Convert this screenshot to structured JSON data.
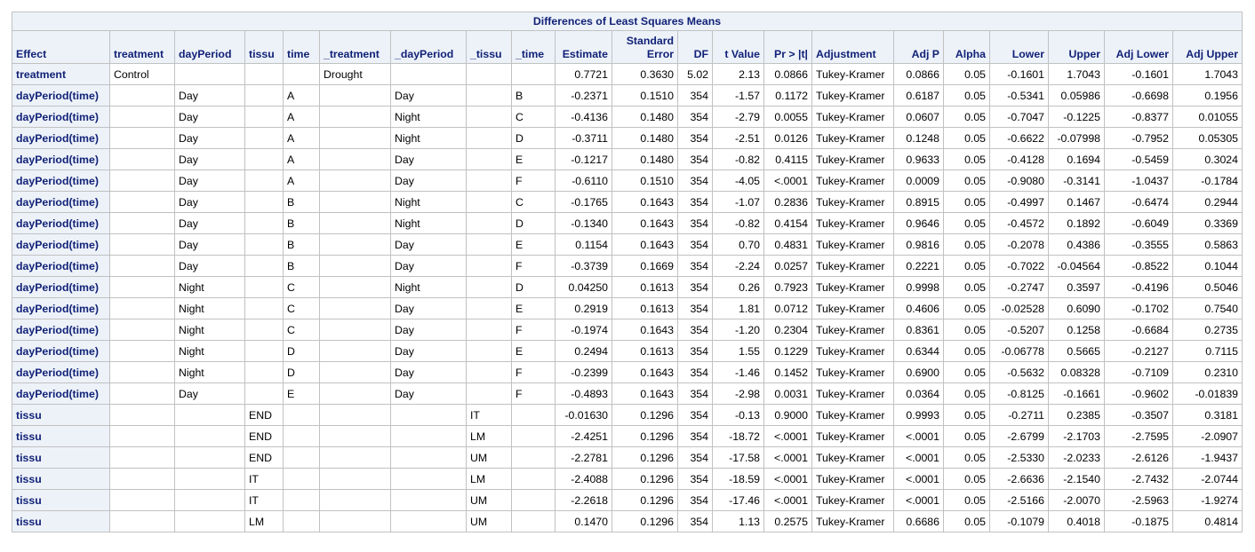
{
  "title": "Differences of Least Squares Means",
  "columns": [
    {
      "key": "effect",
      "label": "Effect",
      "align": "l",
      "width": 110
    },
    {
      "key": "treatment",
      "label": "treatment",
      "align": "l",
      "width": 73
    },
    {
      "key": "dayPeriod",
      "label": "dayPeriod",
      "align": "l",
      "width": 79
    },
    {
      "key": "tissu",
      "label": "tissu",
      "align": "l",
      "width": 43
    },
    {
      "key": "time",
      "label": "time",
      "align": "l",
      "width": 41
    },
    {
      "key": "_treatment",
      "label": "_treatment",
      "align": "l",
      "width": 80
    },
    {
      "key": "_dayPeriod",
      "label": "_dayPeriod",
      "align": "l",
      "width": 85
    },
    {
      "key": "_tissu",
      "label": "_tissu",
      "align": "l",
      "width": 51
    },
    {
      "key": "_time",
      "label": "_time",
      "align": "l",
      "width": 49
    },
    {
      "key": "estimate",
      "label": "Estimate",
      "align": "r",
      "width": 64
    },
    {
      "key": "std_error",
      "label": "Standard Error",
      "align": "r",
      "width": 74
    },
    {
      "key": "df",
      "label": "DF",
      "align": "r",
      "width": 39
    },
    {
      "key": "t_value",
      "label": "t Value",
      "align": "r",
      "width": 58
    },
    {
      "key": "pr_t",
      "label": "Pr > |t|",
      "align": "r",
      "width": 54
    },
    {
      "key": "adjustment",
      "label": "Adjustment",
      "align": "l",
      "width": 92
    },
    {
      "key": "adj_p",
      "label": "Adj P",
      "align": "r",
      "width": 56
    },
    {
      "key": "alpha",
      "label": "Alpha",
      "align": "r",
      "width": 52
    },
    {
      "key": "lower",
      "label": "Lower",
      "align": "r",
      "width": 66
    },
    {
      "key": "upper",
      "label": "Upper",
      "align": "r",
      "width": 63
    },
    {
      "key": "adj_lower",
      "label": "Adj Lower",
      "align": "r",
      "width": 77
    },
    {
      "key": "adj_upper",
      "label": "Adj Upper",
      "align": "r",
      "width": 78
    }
  ],
  "rows": [
    [
      "treatment",
      "Control",
      "",
      "",
      "",
      "Drought",
      "",
      "",
      "",
      "0.7721",
      "0.3630",
      "5.02",
      "2.13",
      "0.0866",
      "Tukey-Kramer",
      "0.0866",
      "0.05",
      "-0.1601",
      "1.7043",
      "-0.1601",
      "1.7043"
    ],
    [
      "dayPeriod(time)",
      "",
      "Day",
      "",
      "A",
      "",
      "Day",
      "",
      "B",
      "-0.2371",
      "0.1510",
      "354",
      "-1.57",
      "0.1172",
      "Tukey-Kramer",
      "0.6187",
      "0.05",
      "-0.5341",
      "0.05986",
      "-0.6698",
      "0.1956"
    ],
    [
      "dayPeriod(time)",
      "",
      "Day",
      "",
      "A",
      "",
      "Night",
      "",
      "C",
      "-0.4136",
      "0.1480",
      "354",
      "-2.79",
      "0.0055",
      "Tukey-Kramer",
      "0.0607",
      "0.05",
      "-0.7047",
      "-0.1225",
      "-0.8377",
      "0.01055"
    ],
    [
      "dayPeriod(time)",
      "",
      "Day",
      "",
      "A",
      "",
      "Night",
      "",
      "D",
      "-0.3711",
      "0.1480",
      "354",
      "-2.51",
      "0.0126",
      "Tukey-Kramer",
      "0.1248",
      "0.05",
      "-0.6622",
      "-0.07998",
      "-0.7952",
      "0.05305"
    ],
    [
      "dayPeriod(time)",
      "",
      "Day",
      "",
      "A",
      "",
      "Day",
      "",
      "E",
      "-0.1217",
      "0.1480",
      "354",
      "-0.82",
      "0.4115",
      "Tukey-Kramer",
      "0.9633",
      "0.05",
      "-0.4128",
      "0.1694",
      "-0.5459",
      "0.3024"
    ],
    [
      "dayPeriod(time)",
      "",
      "Day",
      "",
      "A",
      "",
      "Day",
      "",
      "F",
      "-0.6110",
      "0.1510",
      "354",
      "-4.05",
      "<.0001",
      "Tukey-Kramer",
      "0.0009",
      "0.05",
      "-0.9080",
      "-0.3141",
      "-1.0437",
      "-0.1784"
    ],
    [
      "dayPeriod(time)",
      "",
      "Day",
      "",
      "B",
      "",
      "Night",
      "",
      "C",
      "-0.1765",
      "0.1643",
      "354",
      "-1.07",
      "0.2836",
      "Tukey-Kramer",
      "0.8915",
      "0.05",
      "-0.4997",
      "0.1467",
      "-0.6474",
      "0.2944"
    ],
    [
      "dayPeriod(time)",
      "",
      "Day",
      "",
      "B",
      "",
      "Night",
      "",
      "D",
      "-0.1340",
      "0.1643",
      "354",
      "-0.82",
      "0.4154",
      "Tukey-Kramer",
      "0.9646",
      "0.05",
      "-0.4572",
      "0.1892",
      "-0.6049",
      "0.3369"
    ],
    [
      "dayPeriod(time)",
      "",
      "Day",
      "",
      "B",
      "",
      "Day",
      "",
      "E",
      "0.1154",
      "0.1643",
      "354",
      "0.70",
      "0.4831",
      "Tukey-Kramer",
      "0.9816",
      "0.05",
      "-0.2078",
      "0.4386",
      "-0.3555",
      "0.5863"
    ],
    [
      "dayPeriod(time)",
      "",
      "Day",
      "",
      "B",
      "",
      "Day",
      "",
      "F",
      "-0.3739",
      "0.1669",
      "354",
      "-2.24",
      "0.0257",
      "Tukey-Kramer",
      "0.2221",
      "0.05",
      "-0.7022",
      "-0.04564",
      "-0.8522",
      "0.1044"
    ],
    [
      "dayPeriod(time)",
      "",
      "Night",
      "",
      "C",
      "",
      "Night",
      "",
      "D",
      "0.04250",
      "0.1613",
      "354",
      "0.26",
      "0.7923",
      "Tukey-Kramer",
      "0.9998",
      "0.05",
      "-0.2747",
      "0.3597",
      "-0.4196",
      "0.5046"
    ],
    [
      "dayPeriod(time)",
      "",
      "Night",
      "",
      "C",
      "",
      "Day",
      "",
      "E",
      "0.2919",
      "0.1613",
      "354",
      "1.81",
      "0.0712",
      "Tukey-Kramer",
      "0.4606",
      "0.05",
      "-0.02528",
      "0.6090",
      "-0.1702",
      "0.7540"
    ],
    [
      "dayPeriod(time)",
      "",
      "Night",
      "",
      "C",
      "",
      "Day",
      "",
      "F",
      "-0.1974",
      "0.1643",
      "354",
      "-1.20",
      "0.2304",
      "Tukey-Kramer",
      "0.8361",
      "0.05",
      "-0.5207",
      "0.1258",
      "-0.6684",
      "0.2735"
    ],
    [
      "dayPeriod(time)",
      "",
      "Night",
      "",
      "D",
      "",
      "Day",
      "",
      "E",
      "0.2494",
      "0.1613",
      "354",
      "1.55",
      "0.1229",
      "Tukey-Kramer",
      "0.6344",
      "0.05",
      "-0.06778",
      "0.5665",
      "-0.2127",
      "0.7115"
    ],
    [
      "dayPeriod(time)",
      "",
      "Night",
      "",
      "D",
      "",
      "Day",
      "",
      "F",
      "-0.2399",
      "0.1643",
      "354",
      "-1.46",
      "0.1452",
      "Tukey-Kramer",
      "0.6900",
      "0.05",
      "-0.5632",
      "0.08328",
      "-0.7109",
      "0.2310"
    ],
    [
      "dayPeriod(time)",
      "",
      "Day",
      "",
      "E",
      "",
      "Day",
      "",
      "F",
      "-0.4893",
      "0.1643",
      "354",
      "-2.98",
      "0.0031",
      "Tukey-Kramer",
      "0.0364",
      "0.05",
      "-0.8125",
      "-0.1661",
      "-0.9602",
      "-0.01839"
    ],
    [
      "tissu",
      "",
      "",
      "END",
      "",
      "",
      "",
      "IT",
      "",
      "-0.01630",
      "0.1296",
      "354",
      "-0.13",
      "0.9000",
      "Tukey-Kramer",
      "0.9993",
      "0.05",
      "-0.2711",
      "0.2385",
      "-0.3507",
      "0.3181"
    ],
    [
      "tissu",
      "",
      "",
      "END",
      "",
      "",
      "",
      "LM",
      "",
      "-2.4251",
      "0.1296",
      "354",
      "-18.72",
      "<.0001",
      "Tukey-Kramer",
      "<.0001",
      "0.05",
      "-2.6799",
      "-2.1703",
      "-2.7595",
      "-2.0907"
    ],
    [
      "tissu",
      "",
      "",
      "END",
      "",
      "",
      "",
      "UM",
      "",
      "-2.2781",
      "0.1296",
      "354",
      "-17.58",
      "<.0001",
      "Tukey-Kramer",
      "<.0001",
      "0.05",
      "-2.5330",
      "-2.0233",
      "-2.6126",
      "-1.9437"
    ],
    [
      "tissu",
      "",
      "",
      "IT",
      "",
      "",
      "",
      "LM",
      "",
      "-2.4088",
      "0.1296",
      "354",
      "-18.59",
      "<.0001",
      "Tukey-Kramer",
      "<.0001",
      "0.05",
      "-2.6636",
      "-2.1540",
      "-2.7432",
      "-2.0744"
    ],
    [
      "tissu",
      "",
      "",
      "IT",
      "",
      "",
      "",
      "UM",
      "",
      "-2.2618",
      "0.1296",
      "354",
      "-17.46",
      "<.0001",
      "Tukey-Kramer",
      "<.0001",
      "0.05",
      "-2.5166",
      "-2.0070",
      "-2.5963",
      "-1.9274"
    ],
    [
      "tissu",
      "",
      "",
      "LM",
      "",
      "",
      "",
      "UM",
      "",
      "0.1470",
      "0.1296",
      "354",
      "1.13",
      "0.2575",
      "Tukey-Kramer",
      "0.6686",
      "0.05",
      "-0.1079",
      "0.4018",
      "-0.1875",
      "0.4814"
    ]
  ]
}
